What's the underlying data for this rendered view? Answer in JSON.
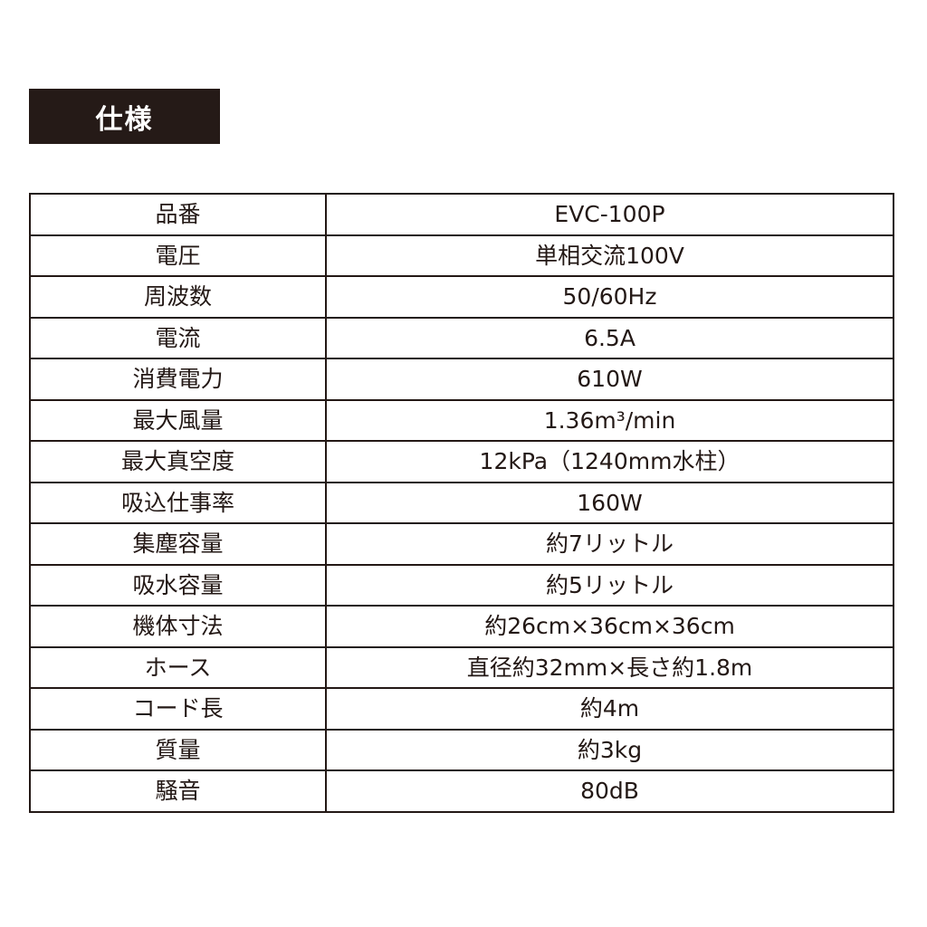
{
  "title": "仕様",
  "specs": [
    {
      "label": "品番",
      "value": "EVC-100P"
    },
    {
      "label": "電圧",
      "value": "単相交流100V"
    },
    {
      "label": "周波数",
      "value": "50/60Hz"
    },
    {
      "label": "電流",
      "value": "6.5A"
    },
    {
      "label": "消費電力",
      "value": "610W"
    },
    {
      "label": "最大風量",
      "value": "1.36m³/min"
    },
    {
      "label": "最大真空度",
      "value": "12kPa（1240mm水柱）"
    },
    {
      "label": "吸込仕事率",
      "value": "160W"
    },
    {
      "label": "集塵容量",
      "value": "約7リットル"
    },
    {
      "label": "吸水容量",
      "value": "約5リットル"
    },
    {
      "label": "機体寸法",
      "value": "約26cm×36cm×36cm"
    },
    {
      "label": "ホース",
      "value": "直径約32mm×長さ約1.8m"
    },
    {
      "label": "コード長",
      "value": "約4m"
    },
    {
      "label": "質量",
      "value": "約3kg"
    },
    {
      "label": "騒音",
      "value": "80dB"
    }
  ]
}
